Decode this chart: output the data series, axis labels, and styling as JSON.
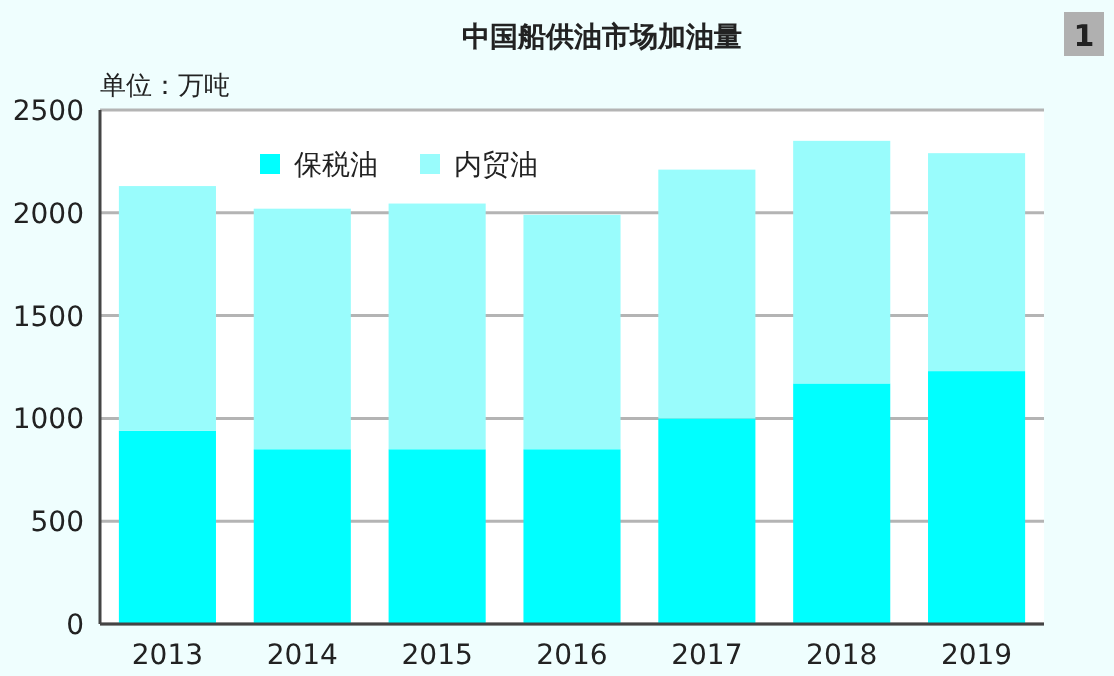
{
  "chart_data": {
    "type": "bar",
    "title": "中国船供油市场加油量",
    "ylabel": "单位：万吨",
    "annotations": [
      "1"
    ],
    "categories": [
      "2013",
      "2014",
      "2015",
      "2016",
      "2017",
      "2018",
      "2019"
    ],
    "stacked": true,
    "series": [
      {
        "name": "保税油",
        "color": "#00ffff",
        "values": [
          940,
          850,
          850,
          850,
          1000,
          1170,
          1230
        ]
      },
      {
        "name": "内贸油",
        "color": "#99fcfc",
        "values": [
          1190,
          1170,
          1195,
          1140,
          1210,
          1180,
          1060
        ]
      }
    ],
    "ylim": [
      0,
      2500
    ],
    "yticks": [
      0,
      500,
      1000,
      1500,
      2000,
      2500
    ],
    "grid": "y",
    "legend": "top"
  }
}
